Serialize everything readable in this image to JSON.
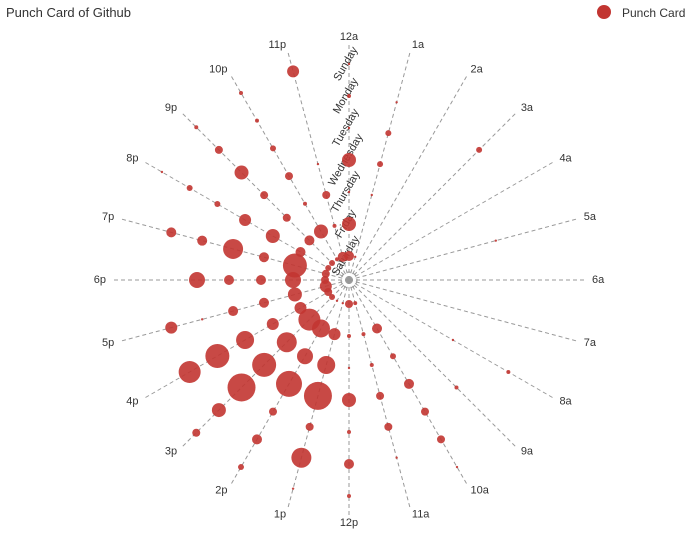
{
  "chart_data": {
    "type": "scatter",
    "coordinate": "polar",
    "title": "Punch Card of Github",
    "legend": {
      "entries": [
        "Punch Card"
      ],
      "position": "top-right"
    },
    "colors": {
      "series": "#c23531",
      "axis": "#999999",
      "text": "#333333"
    },
    "hours": [
      "12a",
      "1a",
      "2a",
      "3a",
      "4a",
      "5a",
      "6a",
      "7a",
      "8a",
      "9a",
      "10a",
      "11a",
      "12p",
      "1p",
      "2p",
      "3p",
      "4p",
      "5p",
      "6p",
      "7p",
      "8p",
      "9p",
      "10p",
      "11p"
    ],
    "days": [
      "Saturday",
      "Friday",
      "Thursday",
      "Wednesday",
      "Tuesday",
      "Monday",
      "Sunday"
    ],
    "series": [
      {
        "name": "Punch Card",
        "values": [
          [
            0,
            0,
            5
          ],
          [
            1,
            0,
            1
          ],
          [
            2,
            0,
            0
          ],
          [
            3,
            0,
            0
          ],
          [
            4,
            0,
            0
          ],
          [
            5,
            0,
            0
          ],
          [
            6,
            0,
            0
          ],
          [
            7,
            0,
            0
          ],
          [
            8,
            0,
            0
          ],
          [
            9,
            0,
            0
          ],
          [
            10,
            0,
            0
          ],
          [
            11,
            0,
            2
          ],
          [
            12,
            0,
            4
          ],
          [
            13,
            0,
            1
          ],
          [
            14,
            0,
            1
          ],
          [
            15,
            0,
            3
          ],
          [
            16,
            0,
            4
          ],
          [
            17,
            0,
            6
          ],
          [
            18,
            0,
            4
          ],
          [
            19,
            0,
            4
          ],
          [
            20,
            0,
            3
          ],
          [
            21,
            0,
            3
          ],
          [
            22,
            0,
            2
          ],
          [
            23,
            0,
            5
          ],
          [
            0,
            1,
            7
          ],
          [
            1,
            1,
            0
          ],
          [
            2,
            1,
            0
          ],
          [
            3,
            1,
            0
          ],
          [
            4,
            1,
            0
          ],
          [
            5,
            1,
            0
          ],
          [
            6,
            1,
            0
          ],
          [
            7,
            1,
            0
          ],
          [
            8,
            1,
            0
          ],
          [
            9,
            1,
            0
          ],
          [
            10,
            1,
            5
          ],
          [
            11,
            1,
            2
          ],
          [
            12,
            1,
            2
          ],
          [
            13,
            1,
            6
          ],
          [
            14,
            1,
            9
          ],
          [
            15,
            1,
            11
          ],
          [
            16,
            1,
            6
          ],
          [
            17,
            1,
            7
          ],
          [
            18,
            1,
            8
          ],
          [
            19,
            1,
            12
          ],
          [
            20,
            1,
            5
          ],
          [
            21,
            1,
            5
          ],
          [
            22,
            1,
            7
          ],
          [
            23,
            1,
            2
          ],
          [
            0,
            2,
            1
          ],
          [
            1,
            2,
            1
          ],
          [
            2,
            2,
            0
          ],
          [
            3,
            2,
            0
          ],
          [
            4,
            2,
            0
          ],
          [
            5,
            2,
            0
          ],
          [
            6,
            2,
            0
          ],
          [
            7,
            2,
            0
          ],
          [
            8,
            2,
            0
          ],
          [
            9,
            2,
            0
          ],
          [
            10,
            2,
            3
          ],
          [
            11,
            2,
            2
          ],
          [
            12,
            2,
            1
          ],
          [
            13,
            2,
            9
          ],
          [
            14,
            2,
            8
          ],
          [
            15,
            2,
            10
          ],
          [
            16,
            2,
            6
          ],
          [
            17,
            2,
            5
          ],
          [
            18,
            2,
            5
          ],
          [
            19,
            2,
            5
          ],
          [
            20,
            2,
            7
          ],
          [
            21,
            2,
            4
          ],
          [
            22,
            2,
            2
          ],
          [
            23,
            2,
            4
          ],
          [
            0,
            3,
            7
          ],
          [
            1,
            3,
            3
          ],
          [
            2,
            3,
            0
          ],
          [
            3,
            3,
            0
          ],
          [
            4,
            3,
            0
          ],
          [
            5,
            3,
            0
          ],
          [
            6,
            3,
            0
          ],
          [
            7,
            3,
            0
          ],
          [
            8,
            3,
            1
          ],
          [
            9,
            3,
            0
          ],
          [
            10,
            3,
            5
          ],
          [
            11,
            3,
            4
          ],
          [
            12,
            3,
            7
          ],
          [
            13,
            3,
            14
          ],
          [
            14,
            3,
            13
          ],
          [
            15,
            3,
            12
          ],
          [
            16,
            3,
            9
          ],
          [
            17,
            3,
            5
          ],
          [
            18,
            3,
            5
          ],
          [
            19,
            3,
            10
          ],
          [
            20,
            3,
            6
          ],
          [
            21,
            3,
            4
          ],
          [
            22,
            3,
            4
          ],
          [
            23,
            3,
            1
          ],
          [
            0,
            4,
            1
          ],
          [
            1,
            4,
            3
          ],
          [
            2,
            4,
            0
          ],
          [
            3,
            4,
            0
          ],
          [
            4,
            4,
            0
          ],
          [
            5,
            4,
            1
          ],
          [
            6,
            4,
            0
          ],
          [
            7,
            4,
            0
          ],
          [
            8,
            4,
            0
          ],
          [
            9,
            4,
            2
          ],
          [
            10,
            4,
            4
          ],
          [
            11,
            4,
            4
          ],
          [
            12,
            4,
            2
          ],
          [
            13,
            4,
            4
          ],
          [
            14,
            4,
            4
          ],
          [
            15,
            4,
            14
          ],
          [
            16,
            4,
            12
          ],
          [
            17,
            4,
            1
          ],
          [
            18,
            4,
            8
          ],
          [
            19,
            4,
            5
          ],
          [
            20,
            4,
            3
          ],
          [
            21,
            4,
            7
          ],
          [
            22,
            4,
            3
          ],
          [
            23,
            4,
            0
          ],
          [
            0,
            5,
            2
          ],
          [
            1,
            5,
            1
          ],
          [
            2,
            5,
            0
          ],
          [
            3,
            5,
            3
          ],
          [
            4,
            5,
            0
          ],
          [
            5,
            5,
            0
          ],
          [
            6,
            5,
            0
          ],
          [
            7,
            5,
            0
          ],
          [
            8,
            5,
            2
          ],
          [
            9,
            5,
            0
          ],
          [
            10,
            5,
            4
          ],
          [
            11,
            5,
            1
          ],
          [
            12,
            5,
            5
          ],
          [
            13,
            5,
            10
          ],
          [
            14,
            5,
            5
          ],
          [
            15,
            5,
            7
          ],
          [
            16,
            5,
            11
          ],
          [
            17,
            5,
            6
          ],
          [
            18,
            5,
            0
          ],
          [
            19,
            5,
            5
          ],
          [
            20,
            5,
            3
          ],
          [
            21,
            5,
            4
          ],
          [
            22,
            5,
            2
          ],
          [
            23,
            5,
            0
          ],
          [
            0,
            6,
            1
          ],
          [
            1,
            6,
            0
          ],
          [
            2,
            6,
            0
          ],
          [
            3,
            6,
            0
          ],
          [
            4,
            6,
            0
          ],
          [
            5,
            6,
            0
          ],
          [
            6,
            6,
            0
          ],
          [
            7,
            6,
            0
          ],
          [
            8,
            6,
            0
          ],
          [
            9,
            6,
            0
          ],
          [
            10,
            6,
            1
          ],
          [
            11,
            6,
            0
          ],
          [
            12,
            6,
            2
          ],
          [
            13,
            6,
            1
          ],
          [
            14,
            6,
            3
          ],
          [
            15,
            6,
            4
          ],
          [
            16,
            6,
            0
          ],
          [
            17,
            6,
            0
          ],
          [
            18,
            6,
            0
          ],
          [
            19,
            6,
            0
          ],
          [
            20,
            6,
            1
          ],
          [
            21,
            6,
            2
          ],
          [
            22,
            6,
            2
          ],
          [
            23,
            6,
            6
          ]
        ]
      }
    ]
  }
}
